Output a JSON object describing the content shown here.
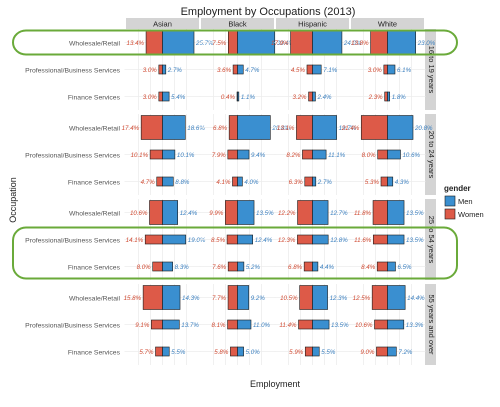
{
  "chart_data": {
    "type": "bar",
    "title": "Employment by Occupations (2013)",
    "xlabel": "Employment",
    "ylabel": "Occupation",
    "columns": [
      "Asian",
      "Black",
      "Hispanic",
      "White"
    ],
    "age_groups": [
      "16 to 19 years",
      "20 to 24 years",
      "25 to 54 years",
      "55 years and over"
    ],
    "occupations": [
      "Wholesale/Retail",
      "Professional/Business Services",
      "Finance Services"
    ],
    "legend": {
      "title": "gender",
      "items": [
        "Men",
        "Women"
      ],
      "placement": "right"
    },
    "colors": {
      "Men": "#3a8fd0",
      "Women": "#dd5a48",
      "men_label": "#3a7fbf",
      "women_label": "#d04a32",
      "highlight": "#6aaa3a",
      "strip": "#d4d4d4"
    },
    "x_max": 31,
    "series": [
      {
        "name": "Women",
        "values": {
          "16 to 19 years": {
            "Wholesale/Retail": [
              13.4,
              7.5,
              17.9,
              13.8
            ],
            "Professional/Business Services": [
              3.0,
              3.6,
              4.5,
              3.0
            ],
            "Finance Services": [
              3.0,
              0.4,
              3.2,
              2.3
            ]
          },
          "20 to 24 years": {
            "Wholesale/Retail": [
              17.4,
              6.8,
              13.1,
              21.4
            ],
            "Professional/Business Services": [
              10.1,
              7.9,
              8.2,
              8.0
            ],
            "Finance Services": [
              4.7,
              4.1,
              6.3,
              5.3
            ]
          },
          "25 to 54 years": {
            "Wholesale/Retail": [
              10.6,
              9.9,
              12.2,
              11.8
            ],
            "Professional/Business Services": [
              14.1,
              8.5,
              12.3,
              11.6
            ],
            "Finance Services": [
              8.0,
              7.6,
              6.8,
              8.4
            ]
          },
          "55 years and over": {
            "Wholesale/Retail": [
              15.8,
              7.7,
              10.5,
              12.5
            ],
            "Professional/Business Services": [
              9.1,
              8.1,
              11.4,
              10.6
            ],
            "Finance Services": [
              5.7,
              5.8,
              5.9,
              9.0
            ]
          }
        }
      },
      {
        "name": "Men",
        "values": {
          "16 to 19 years": {
            "Wholesale/Retail": [
              25.7,
              30.4,
              24.0,
              23.0
            ],
            "Professional/Business Services": [
              2.7,
              4.7,
              7.1,
              6.1
            ],
            "Finance Services": [
              5.4,
              1.1,
              2.4,
              1.8
            ]
          },
          "20 to 24 years": {
            "Wholesale/Retail": [
              18.6,
              26.8,
              19.7,
              20.8
            ],
            "Professional/Business Services": [
              10.1,
              9.4,
              11.1,
              10.6
            ],
            "Finance Services": [
              8.8,
              4.0,
              2.7,
              4.3
            ]
          },
          "25 to 54 years": {
            "Wholesale/Retail": [
              12.4,
              13.5,
              12.7,
              13.5
            ],
            "Professional/Business Services": [
              19.0,
              12.4,
              12.8,
              13.5
            ],
            "Finance Services": [
              8.3,
              5.2,
              4.4,
              6.5
            ]
          },
          "55 years and over": {
            "Wholesale/Retail": [
              14.3,
              9.2,
              12.3,
              14.4
            ],
            "Professional/Business Services": [
              13.7,
              11.0,
              13.5,
              13.3
            ],
            "Finance Services": [
              5.5,
              5.0,
              5.5,
              7.2
            ]
          }
        }
      }
    ],
    "value_labels": {
      "16 to 19 years": {
        "Wholesale/Retail": [
          [
            "13.4%",
            "25.7%"
          ],
          [
            "7.5%",
            "30.4%"
          ],
          [
            "17.9%",
            "24.0%"
          ],
          [
            "13.8%",
            "23.0%"
          ]
        ],
        "Professional/Business Services": [
          [
            "3.0%",
            "2.7%"
          ],
          [
            "3.6%",
            "4.7%"
          ],
          [
            "4.5%",
            "7.1%"
          ],
          [
            "3.0%",
            "6.1%"
          ]
        ],
        "Finance Services": [
          [
            "3.0%",
            "5.4%"
          ],
          [
            "0.4%",
            "1.1%"
          ],
          [
            "3.2%",
            "2.4%"
          ],
          [
            "2.3%",
            "1.8%"
          ]
        ]
      },
      "20 to 24 years": {
        "Wholesale/Retail": [
          [
            "17.4%",
            "18.6%"
          ],
          [
            "6.8%",
            "26.8%"
          ],
          [
            "13.1%",
            "19.7%"
          ],
          [
            "21.4%",
            "20.8%"
          ]
        ],
        "Professional/Business Services": [
          [
            "10.1%",
            "10.1%"
          ],
          [
            "7.9%",
            "9.4%"
          ],
          [
            "8.2%",
            "11.1%"
          ],
          [
            "8.0%",
            "10.6%"
          ]
        ],
        "Finance Services": [
          [
            "4.7%",
            "8.8%"
          ],
          [
            "4.1%",
            "4.0%"
          ],
          [
            "6.3%",
            "2.7%"
          ],
          [
            "5.3%",
            "4.3%"
          ]
        ]
      },
      "25 to 54 years": {
        "Wholesale/Retail": [
          [
            "10.6%",
            "12.4%"
          ],
          [
            "9.9%",
            "13.5%"
          ],
          [
            "12.2%",
            "12.7%"
          ],
          [
            "11.8%",
            "13.5%"
          ]
        ],
        "Professional/Business Services": [
          [
            "14.1%",
            "19.0%"
          ],
          [
            "8.5%",
            "12.4%"
          ],
          [
            "12.3%",
            "12.8%"
          ],
          [
            "11.6%",
            "13.5%"
          ]
        ],
        "Finance Services": [
          [
            "8.0%",
            "8.3%"
          ],
          [
            "7.6%",
            "5.2%"
          ],
          [
            "6.8%",
            "4.4%"
          ],
          [
            "8.4%",
            "6.5%"
          ]
        ]
      },
      "55 years and over": {
        "Wholesale/Retail": [
          [
            "15.8%",
            "14.3%"
          ],
          [
            "7.7%",
            "9.2%"
          ],
          [
            "10.5%",
            "12.3%"
          ],
          [
            "12.5%",
            "14.4%"
          ]
        ],
        "Professional/Business Services": [
          [
            "9.1%",
            "13.7%"
          ],
          [
            "8.1%",
            "11.0%"
          ],
          [
            "11.4%",
            "13.5%"
          ],
          [
            "10.6%",
            "13.3%"
          ]
        ],
        "Finance Services": [
          [
            "5.7%",
            "5.5%"
          ],
          [
            "5.8%",
            "5.0%"
          ],
          [
            "5.9%",
            "5.5%"
          ],
          [
            "9.0%",
            "7.2%"
          ]
        ]
      }
    },
    "highlights": [
      {
        "age_group": "16 to 19 years",
        "occupations": [
          "Wholesale/Retail"
        ]
      },
      {
        "age_group": "25 to 54 years",
        "occupations": [
          "Professional/Business Services",
          "Finance Services"
        ]
      }
    ],
    "grid": true
  }
}
